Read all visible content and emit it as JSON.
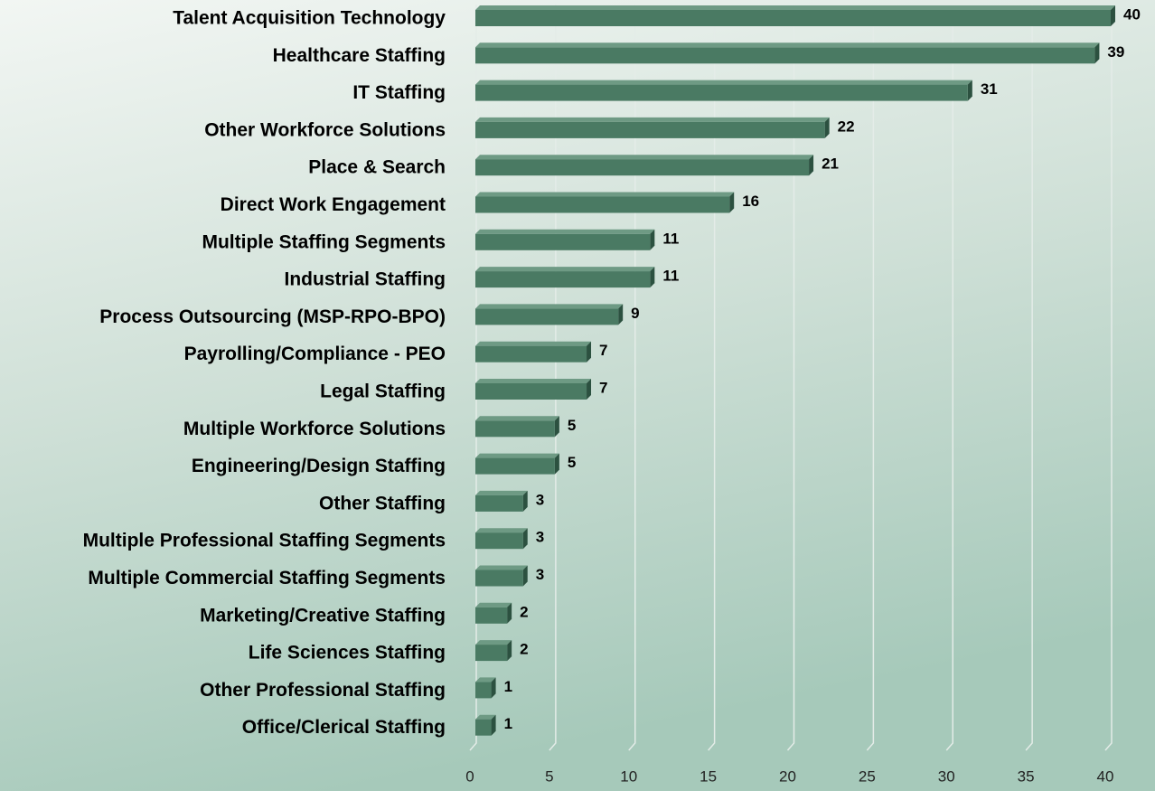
{
  "chart_data": {
    "type": "bar",
    "orientation": "horizontal",
    "categories": [
      "Talent Acquisition Technology",
      "Healthcare Staffing",
      "IT Staffing",
      "Other Workforce Solutions",
      "Place & Search",
      "Direct Work Engagement",
      "Multiple Staffing Segments",
      "Industrial Staffing",
      "Process Outsourcing (MSP-RPO-BPO)",
      "Payrolling/Compliance - PEO",
      "Legal Staffing",
      "Multiple Workforce Solutions",
      "Engineering/Design Staffing",
      "Other Staffing",
      "Multiple Professional Staffing Segments",
      "Multiple Commercial Staffing Segments",
      "Marketing/Creative Staffing",
      "Life Sciences Staffing",
      "Other Professional Staffing",
      "Office/Clerical Staffing"
    ],
    "values": [
      40,
      39,
      31,
      22,
      21,
      16,
      11,
      11,
      9,
      7,
      7,
      5,
      5,
      3,
      3,
      3,
      2,
      2,
      1,
      1
    ],
    "color": "#4a7a63",
    "xlim": [
      0,
      40
    ],
    "xticks": [
      0,
      5,
      10,
      15,
      20,
      25,
      30,
      35,
      40
    ],
    "grid": true
  }
}
